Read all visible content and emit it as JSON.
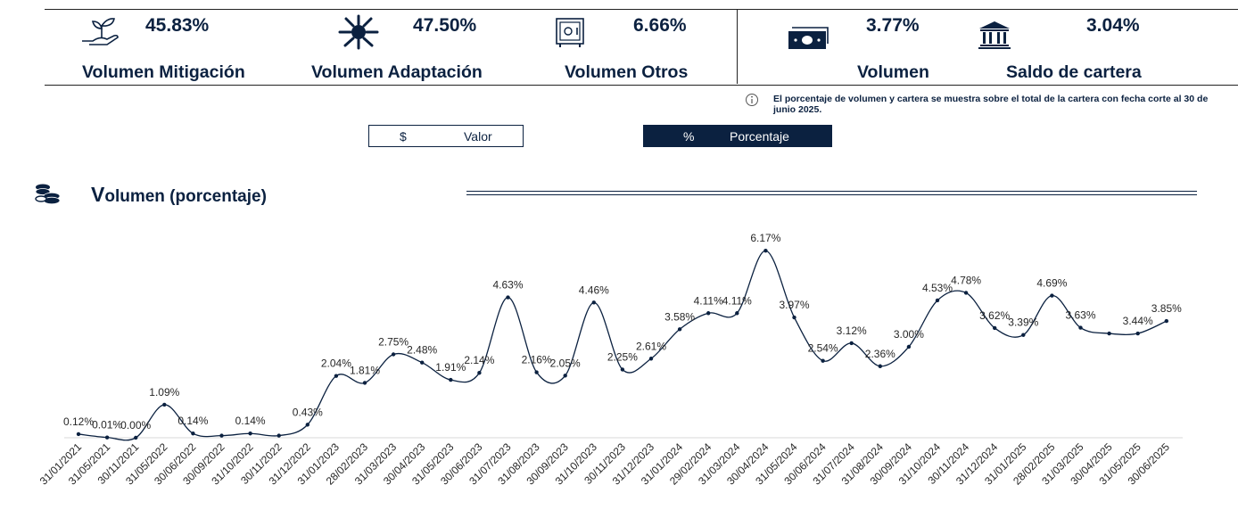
{
  "kpis": [
    {
      "value": "45.83%",
      "label": "Volumen Mitigación",
      "icon": "plant-hand-icon"
    },
    {
      "value": "47.50%",
      "label": "Volumen Adaptación",
      "icon": "hands-circle-icon"
    },
    {
      "value": "6.66%",
      "label": "Volumen Otros",
      "icon": "safe-icon"
    },
    {
      "value": "3.77%",
      "label": "Volumen",
      "icon": "banknote-icon"
    },
    {
      "value": "3.04%",
      "label": "Saldo de cartera",
      "icon": "bank-icon"
    }
  ],
  "note": "El porcentaje de volumen y cartera se muestra sobre el total de la cartera con fecha corte al 30 de junio 2025.",
  "toggles": {
    "valor": {
      "symbol": "$",
      "label": "Valor"
    },
    "porcentaje": {
      "symbol": "%",
      "label": "Porcentaje"
    }
  },
  "section": {
    "title_first": "V",
    "title_rest": "olumen (porcentaje)"
  },
  "colors": {
    "primary": "#0b2140",
    "white": "#ffffff",
    "axis": "#d9d9d9"
  },
  "chart_data": {
    "type": "line",
    "title": "Volumen (porcentaje)",
    "xlabel": "",
    "ylabel": "",
    "ylim": [
      0,
      6.5
    ],
    "grid": false,
    "categories": [
      "31/01/2021",
      "31/05/2021",
      "30/11/2021",
      "31/05/2022",
      "30/06/2022",
      "30/09/2022",
      "31/10/2022",
      "30/11/2022",
      "31/12/2022",
      "31/01/2023",
      "28/02/2023",
      "31/03/2023",
      "30/04/2023",
      "31/05/2023",
      "30/06/2023",
      "31/07/2023",
      "31/08/2023",
      "30/09/2023",
      "31/10/2023",
      "30/11/2023",
      "31/12/2023",
      "31/01/2024",
      "29/02/2024",
      "31/03/2024",
      "30/04/2024",
      "31/05/2024",
      "30/06/2024",
      "31/07/2024",
      "31/08/2024",
      "30/09/2024",
      "31/10/2024",
      "30/11/2024",
      "31/12/2024",
      "31/01/2025",
      "28/02/2025",
      "31/03/2025",
      "30/04/2025",
      "31/05/2025",
      "30/06/2025"
    ],
    "series": [
      {
        "name": "Volumen",
        "values": [
          0.12,
          0.01,
          0.0,
          1.09,
          0.14,
          0.07,
          0.14,
          0.07,
          0.43,
          2.04,
          1.81,
          2.75,
          2.48,
          1.91,
          2.14,
          4.63,
          2.16,
          2.05,
          4.46,
          2.25,
          2.61,
          3.58,
          4.11,
          4.11,
          6.17,
          3.97,
          2.54,
          3.12,
          2.36,
          3.0,
          4.53,
          4.78,
          3.62,
          3.39,
          4.69,
          3.63,
          3.44,
          3.44,
          3.85
        ],
        "data_labels": [
          "0.12%",
          "0.01%",
          "0.00%",
          "1.09%",
          "0.14%",
          "",
          "0.14%",
          "",
          "0.43%",
          "2.04%",
          "1.81%",
          "2.75%",
          "2.48%",
          "1.91%",
          "2.14%",
          "4.63%",
          "2.16%",
          "2.05%",
          "4.46%",
          "2.25%",
          "2.61%",
          "3.58%",
          "4.11%",
          "4.11%",
          "6.17%",
          "3.97%",
          "2.54%",
          "3.12%",
          "2.36%",
          "3.00%",
          "4.53%",
          "4.78%",
          "3.62%",
          "3.39%",
          "4.69%",
          "3.63%",
          "",
          "3.44%",
          "3.85%"
        ]
      }
    ]
  }
}
